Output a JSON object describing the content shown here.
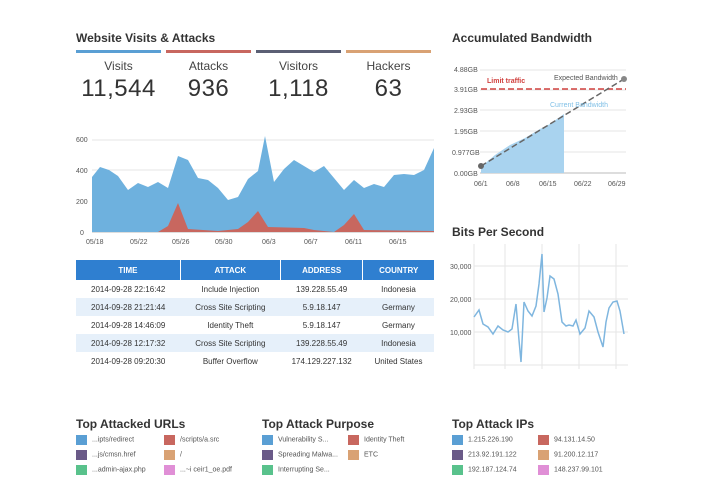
{
  "visits_section": {
    "title": "Website Visits & Attacks",
    "kpis": [
      {
        "label": "Visits",
        "value": "11,544",
        "color": "#5a9fd4"
      },
      {
        "label": "Attacks",
        "value": "936",
        "color": "#c8675f"
      },
      {
        "label": "Visitors",
        "value": "1,118",
        "color": "#5b5f74"
      },
      {
        "label": "Hackers",
        "value": "63",
        "color": "#d9a274"
      }
    ]
  },
  "area_chart": {
    "y_ticks": [
      "600",
      "400",
      "200",
      "0"
    ],
    "x_ticks": [
      "05/18",
      "05/22",
      "05/26",
      "05/30",
      "06/3",
      "06/7",
      "06/11",
      "06/15"
    ]
  },
  "attacks_table": {
    "columns": [
      "TIME",
      "ATTACK",
      "ADDRESS",
      "COUNTRY"
    ],
    "rows": [
      [
        "2014-09-28 22:16:42",
        "Include Injection",
        "139.228.55.49",
        "Indonesia"
      ],
      [
        "2014-09-28 21:21:44",
        "Cross Site Scripting",
        "5.9.18.147",
        "Germany"
      ],
      [
        "2014-09-28 14:46:09",
        "Identity Theft",
        "5.9.18.147",
        "Germany"
      ],
      [
        "2014-09-28 12:17:32",
        "Cross Site Scripting",
        "139.228.55.49",
        "Indonesia"
      ],
      [
        "2014-09-28 09:20:30",
        "Buffer Overflow",
        "174.129.227.132",
        "United States"
      ]
    ]
  },
  "bandwidth": {
    "title": "Accumulated Bandwidth",
    "y_ticks": [
      "4.88GB",
      "3.91GB",
      "2.93GB",
      "1.95GB",
      "0.977GB",
      "0.00GB"
    ],
    "x_ticks": [
      "06/1",
      "06/8",
      "06/15",
      "06/22",
      "06/29"
    ],
    "limit_label": "Limit traffic",
    "expected_label": "Expected Bandwidth",
    "current_label": "Current Bandwidth",
    "colors": {
      "limit": "#d0403e",
      "current": "#7fbfe6",
      "expected": "#666666"
    }
  },
  "bps": {
    "title": "Bits Per Second",
    "y_ticks": [
      "30,000",
      "20,000",
      "10,000"
    ]
  },
  "top_urls": {
    "title": "Top Attacked URLs",
    "items": [
      {
        "label": "...ipts/redirect",
        "color": "#5a9fd4"
      },
      {
        "label": "/scripts/a.src",
        "color": "#c8675f"
      },
      {
        "label": "...js/cmsn.href",
        "color": "#6a5a88"
      },
      {
        "label": "/",
        "color": "#d9a274"
      },
      {
        "label": "...admin-ajax.php",
        "color": "#59c28c"
      },
      {
        "label": "...~i ceir1_oe.pdf",
        "color": "#e08fd6"
      }
    ]
  },
  "top_purpose": {
    "title": "Top Attack Purpose",
    "items": [
      {
        "label": "Vulnerability S...",
        "color": "#5a9fd4"
      },
      {
        "label": "Identity Theft",
        "color": "#c8675f"
      },
      {
        "label": "Spreading Malwa...",
        "color": "#6a5a88"
      },
      {
        "label": "ETC",
        "color": "#d9a274"
      },
      {
        "label": "Interrupting Se...",
        "color": "#59c28c"
      }
    ]
  },
  "top_ips": {
    "title": "Top Attack IPs",
    "items": [
      {
        "label": "1.215.226.190",
        "color": "#5a9fd4"
      },
      {
        "label": "94.131.14.50",
        "color": "#c8675f"
      },
      {
        "label": "213.92.191.122",
        "color": "#6a5a88"
      },
      {
        "label": "91.200.12.117",
        "color": "#d9a274"
      },
      {
        "label": "192.187.124.74",
        "color": "#59c28c"
      },
      {
        "label": "148.237.99.101",
        "color": "#e08fd6"
      }
    ]
  }
}
